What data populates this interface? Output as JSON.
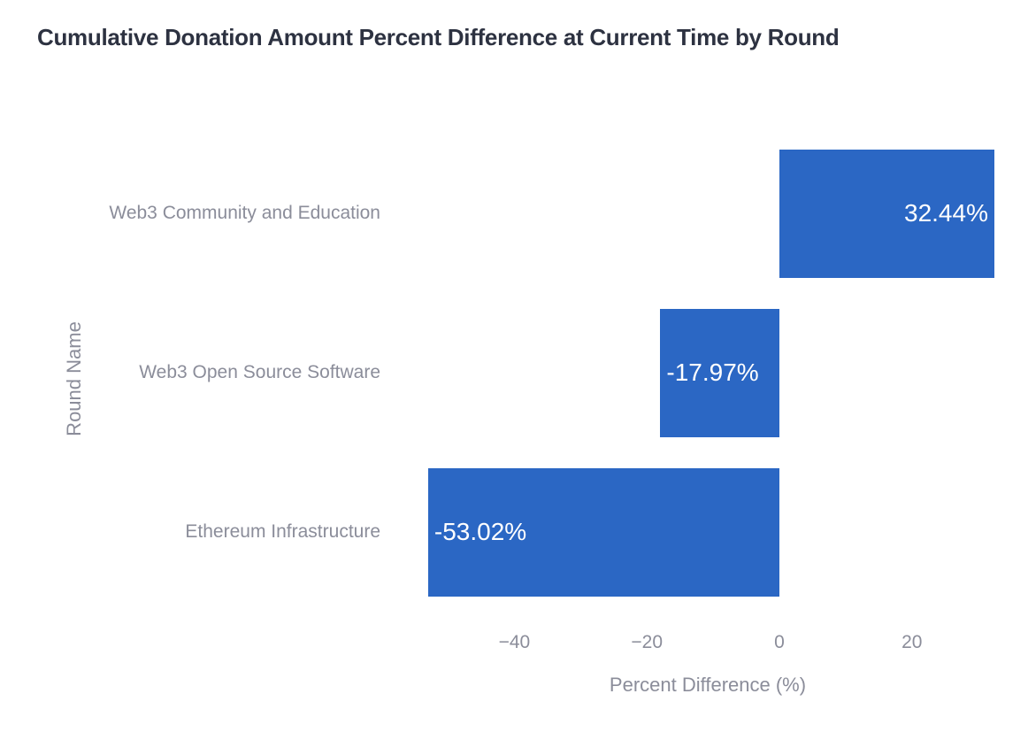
{
  "chart_data": {
    "type": "bar",
    "orientation": "horizontal",
    "title": "Cumulative Donation Amount Percent Difference at Current Time by Round",
    "xlabel": "Percent Difference (%)",
    "ylabel": "Round Name",
    "categories": [
      "Web3 Community and Education",
      "Web3 Open Source Software",
      "Ethereum Infrastructure"
    ],
    "values": [
      32.44,
      -17.97,
      -53.02
    ],
    "bar_labels": [
      "32.44%",
      "-17.97%",
      "-53.02%"
    ],
    "x_ticks": [
      {
        "value": -40,
        "label": "−40"
      },
      {
        "value": -20,
        "label": "−20"
      },
      {
        "value": 0,
        "label": "0"
      },
      {
        "value": 20,
        "label": "20"
      }
    ],
    "xlim": [
      -56.2,
      33.6
    ],
    "grid": false,
    "legend": false,
    "colors": {
      "bar": "#2b67c4",
      "bar_label_text": "#ffffff",
      "title_text": "#2d3241",
      "axis_text": "#8b8d9a",
      "background": "#ffffff"
    }
  }
}
